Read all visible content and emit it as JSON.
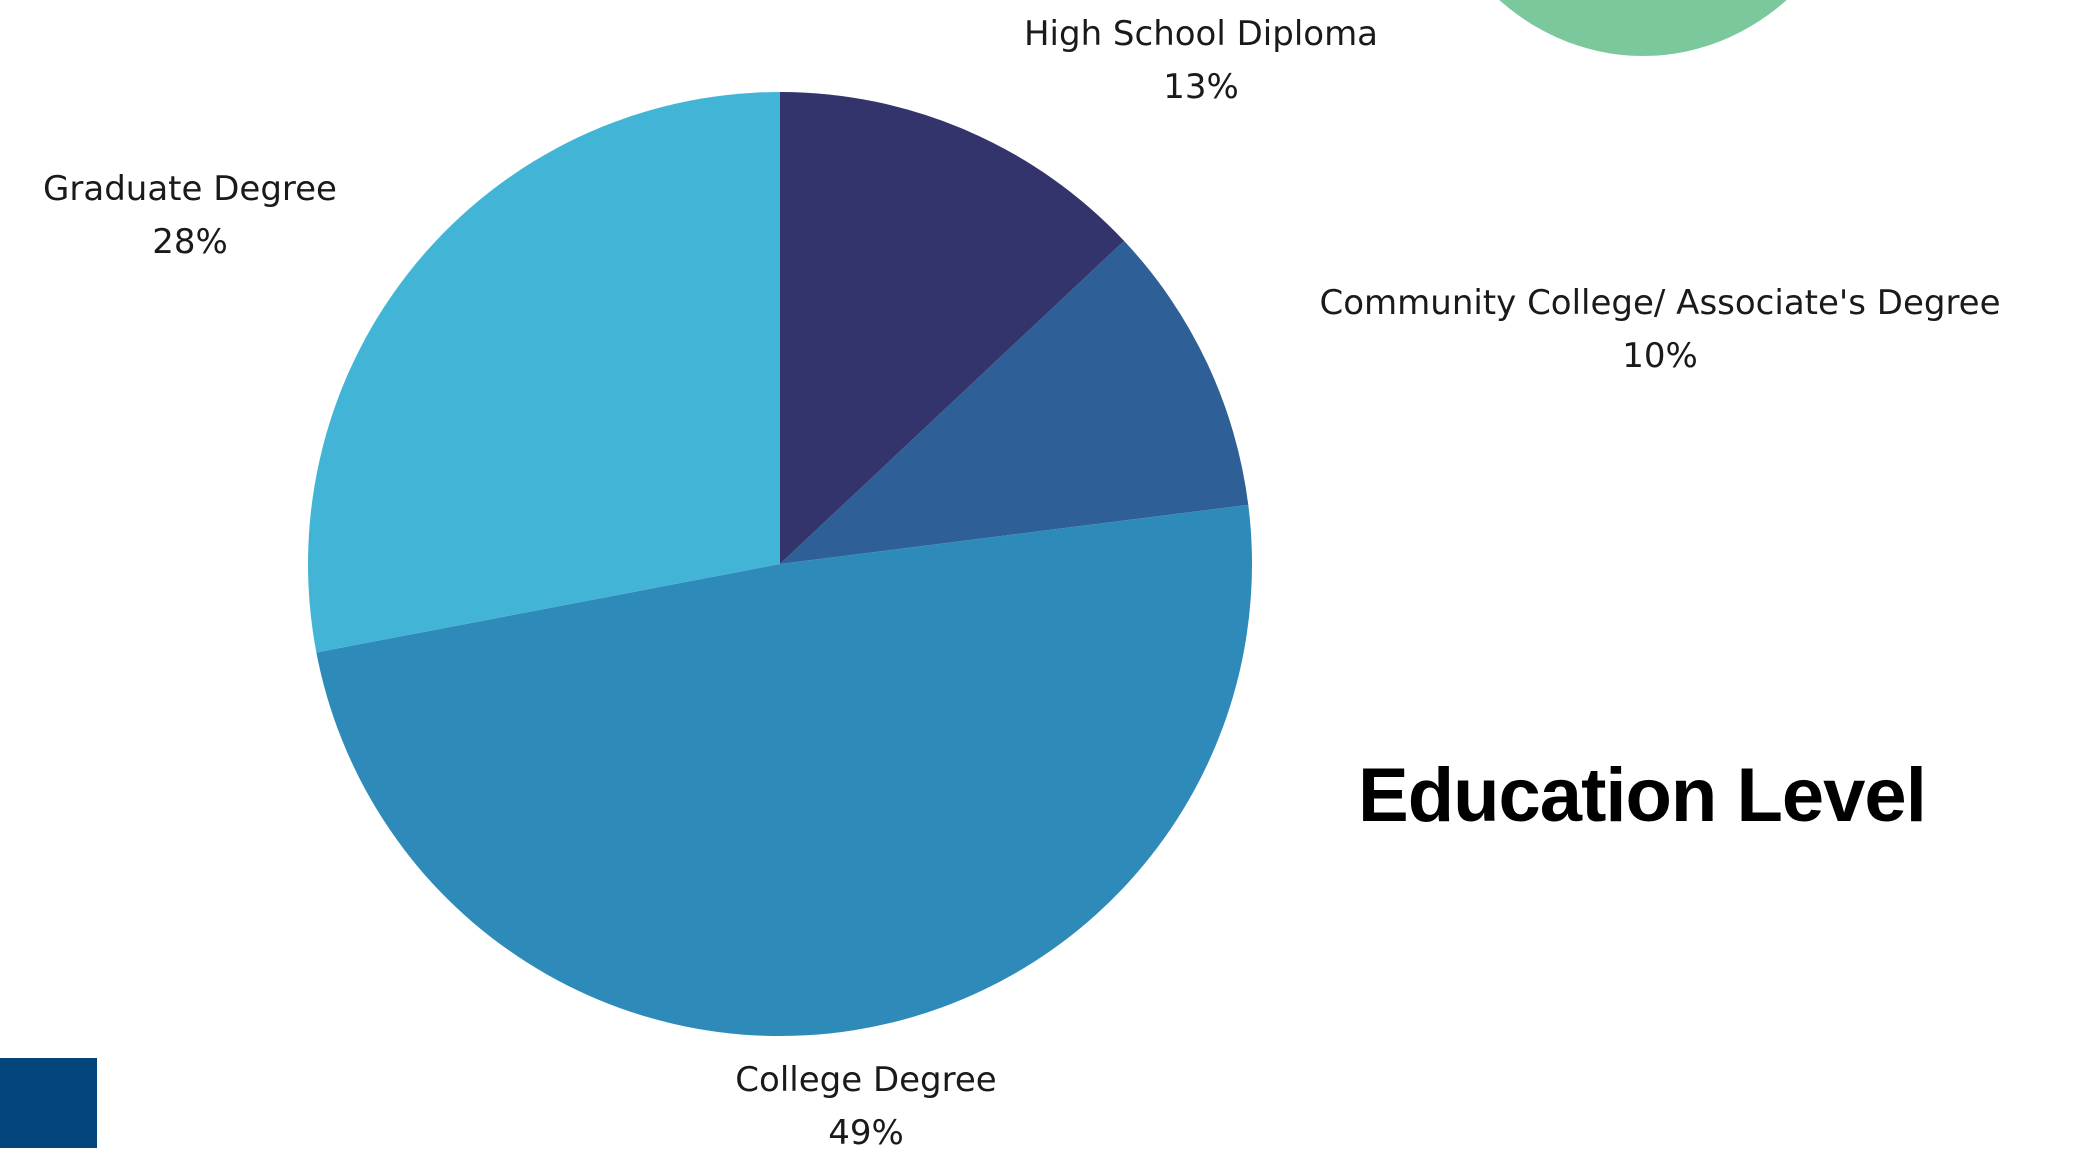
{
  "chart_data": {
    "type": "pie",
    "title": "Education Level",
    "slices": [
      {
        "label": "High School Diploma",
        "value": 13,
        "value_label": "13%",
        "color": "#32346b"
      },
      {
        "label": "Community College/ Associate's Degree",
        "value": 10,
        "value_label": "10%",
        "color": "#2e5f96"
      },
      {
        "label": "College Degree",
        "value": 49,
        "value_label": "49%",
        "color": "#2e8bb9"
      },
      {
        "label": "Graduate Degree",
        "value": 28,
        "value_label": "28%",
        "color": "#42b5d6"
      }
    ],
    "start_angle": "top",
    "direction": "clockwise"
  },
  "decorations": {
    "circle_color": "#7bc89c",
    "square_color": "#03447a"
  }
}
